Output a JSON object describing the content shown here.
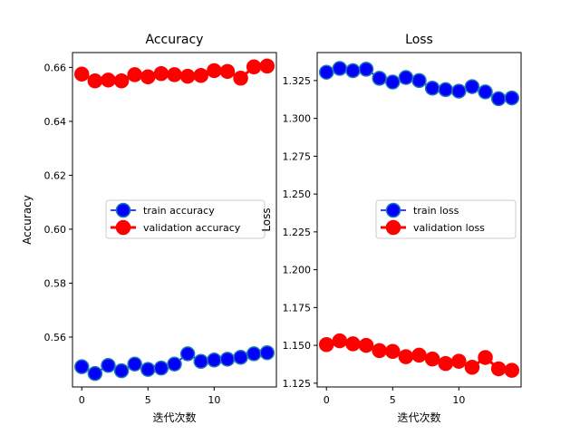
{
  "chart_data": [
    {
      "type": "line",
      "title": "Accuracy",
      "xlabel": "迭代次数",
      "ylabel": "Accuracy",
      "x": [
        0,
        1,
        2,
        3,
        4,
        5,
        6,
        7,
        8,
        9,
        10,
        11,
        12,
        13,
        14
      ],
      "xlim": [
        -0.7,
        14.7
      ],
      "ylim": [
        0.5415,
        0.6655
      ],
      "xticks": [
        0,
        5,
        10
      ],
      "yticks": [
        0.56,
        0.58,
        0.6,
        0.62,
        0.64,
        0.66
      ],
      "ytick_labels": [
        "0.56",
        "0.58",
        "0.60",
        "0.62",
        "0.64",
        "0.66"
      ],
      "legend_position": "center-right",
      "series": [
        {
          "name": "train accuracy",
          "color": "#0000ff",
          "edge": "#1f77b4",
          "values": [
            0.549,
            0.5465,
            0.5495,
            0.5475,
            0.55,
            0.548,
            0.5485,
            0.55,
            0.5538,
            0.551,
            0.5515,
            0.5518,
            0.5525,
            0.5538,
            0.5542
          ]
        },
        {
          "name": "validation accuracy",
          "color": "#ff0000",
          "edge": "#ff0000",
          "values": [
            0.6575,
            0.655,
            0.6553,
            0.655,
            0.6573,
            0.6565,
            0.6577,
            0.6573,
            0.6567,
            0.657,
            0.6588,
            0.6585,
            0.656,
            0.6602,
            0.6605
          ]
        }
      ]
    },
    {
      "type": "line",
      "title": "Loss",
      "xlabel": "迭代次数",
      "ylabel": "Loss",
      "x": [
        0,
        1,
        2,
        3,
        4,
        5,
        6,
        7,
        8,
        9,
        10,
        11,
        12,
        13,
        14
      ],
      "xlim": [
        -0.7,
        14.7
      ],
      "ylim": [
        1.1225,
        1.3435
      ],
      "xticks": [
        0,
        5,
        10
      ],
      "yticks": [
        1.125,
        1.15,
        1.175,
        1.2,
        1.225,
        1.25,
        1.275,
        1.3,
        1.325
      ],
      "ytick_labels": [
        "1.125",
        "1.150",
        "1.175",
        "1.200",
        "1.225",
        "1.250",
        "1.275",
        "1.300",
        "1.325"
      ],
      "legend_position": "center-right",
      "series": [
        {
          "name": "train loss",
          "color": "#0000ff",
          "edge": "#1f77b4",
          "values": [
            1.3305,
            1.333,
            1.3315,
            1.3325,
            1.3265,
            1.324,
            1.327,
            1.325,
            1.32,
            1.319,
            1.318,
            1.321,
            1.3175,
            1.313,
            1.3135
          ]
        },
        {
          "name": "validation loss",
          "color": "#ff0000",
          "edge": "#ff0000",
          "values": [
            1.1505,
            1.153,
            1.151,
            1.15,
            1.1465,
            1.146,
            1.1425,
            1.1435,
            1.141,
            1.138,
            1.1395,
            1.1355,
            1.142,
            1.1345,
            1.1335
          ]
        }
      ]
    }
  ]
}
